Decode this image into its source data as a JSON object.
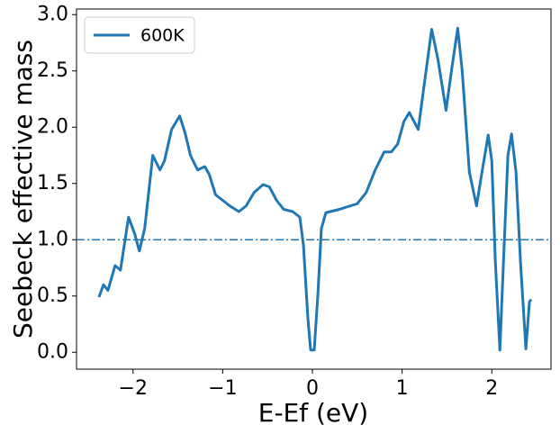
{
  "chart_data": {
    "type": "line",
    "xlabel": "E-Ef (eV)",
    "ylabel": "Seebeck effective mass",
    "x": [
      -2.38,
      -2.33,
      -2.28,
      -2.2,
      -2.14,
      -2.05,
      -1.98,
      -1.93,
      -1.87,
      -1.78,
      -1.7,
      -1.65,
      -1.57,
      -1.48,
      -1.42,
      -1.36,
      -1.28,
      -1.2,
      -1.15,
      -1.08,
      -1.0,
      -0.92,
      -0.82,
      -0.74,
      -0.65,
      -0.55,
      -0.48,
      -0.4,
      -0.32,
      -0.22,
      -0.14,
      -0.1,
      -0.05,
      -0.02,
      0.02,
      0.06,
      0.1,
      0.15,
      0.3,
      0.5,
      0.6,
      0.7,
      0.8,
      0.88,
      0.95,
      1.02,
      1.08,
      1.18,
      1.25,
      1.33,
      1.4,
      1.49,
      1.55,
      1.62,
      1.67,
      1.75,
      1.83,
      1.88,
      1.96,
      2.0,
      2.04,
      2.09,
      2.13,
      2.18,
      2.22,
      2.27,
      2.32,
      2.38,
      2.42,
      2.44
    ],
    "series": [
      {
        "name": "600K",
        "color": "#1f77b4",
        "values": [
          0.49,
          0.6,
          0.55,
          0.77,
          0.73,
          1.2,
          1.05,
          0.9,
          1.1,
          1.75,
          1.62,
          1.7,
          1.98,
          2.1,
          1.95,
          1.75,
          1.62,
          1.65,
          1.58,
          1.4,
          1.35,
          1.3,
          1.25,
          1.3,
          1.42,
          1.49,
          1.47,
          1.35,
          1.27,
          1.25,
          1.2,
          0.95,
          0.3,
          0.02,
          0.02,
          0.5,
          1.1,
          1.24,
          1.27,
          1.32,
          1.42,
          1.62,
          1.78,
          1.78,
          1.85,
          2.05,
          2.13,
          1.98,
          2.4,
          2.87,
          2.6,
          2.15,
          2.5,
          2.88,
          2.5,
          1.6,
          1.3,
          1.55,
          1.93,
          1.7,
          0.8,
          0.02,
          0.8,
          1.75,
          1.94,
          1.6,
          0.8,
          0.03,
          0.45,
          0.47
        ]
      }
    ],
    "hline": {
      "value": 1,
      "color": "#1f77b4",
      "style": "dashdot"
    },
    "xlim": [
      -2.63,
      2.66
    ],
    "ylim": [
      -0.15,
      3.05
    ],
    "xticks": [
      {
        "value": -2,
        "label": "−2"
      },
      {
        "value": -1,
        "label": "−1"
      },
      0,
      1,
      2
    ],
    "yticks": [
      {
        "value": 0,
        "label": "0.0"
      },
      0.5,
      {
        "value": 1,
        "label": "1.0"
      },
      1.5,
      {
        "value": 2,
        "label": "2.0"
      },
      2.5,
      {
        "value": 3,
        "label": "3.0"
      }
    ],
    "legend": "upper left"
  }
}
